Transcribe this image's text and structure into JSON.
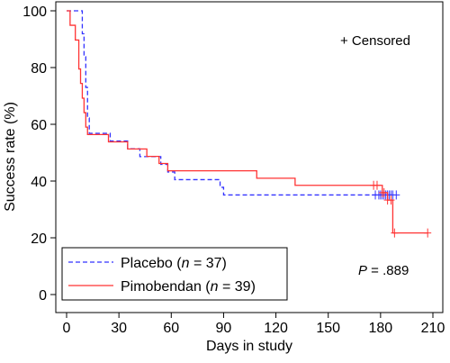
{
  "chart_data": {
    "type": "line",
    "step": true,
    "xlabel": "Days in study",
    "ylabel": "Success rate (%)",
    "xlim": [
      0,
      210
    ],
    "ylim": [
      0,
      100
    ],
    "x_ticks": [
      0,
      30,
      60,
      90,
      120,
      150,
      180,
      210
    ],
    "y_ticks": [
      0,
      20,
      40,
      60,
      80,
      100
    ],
    "grid": false,
    "legend_position": "bottom-left",
    "censor_label": "+ Censored",
    "p_value_label": "P",
    "p_value_text": " = .889",
    "series": [
      {
        "name": "Placebo",
        "n_label": "n",
        "n_text": " = 37)",
        "color": "#3333ff",
        "dash": "dashed",
        "points": [
          [
            0,
            100
          ],
          [
            8,
            100
          ],
          [
            9,
            91.9
          ],
          [
            10,
            83.8
          ],
          [
            11,
            73
          ],
          [
            12,
            62.2
          ],
          [
            13,
            56.8
          ],
          [
            25,
            54.1
          ],
          [
            35,
            51.4
          ],
          [
            42,
            48.6
          ],
          [
            54,
            45.9
          ],
          [
            58,
            43.2
          ],
          [
            62,
            40.5
          ],
          [
            88,
            37.8
          ],
          [
            90,
            35.1
          ],
          [
            183,
            35.1
          ]
        ],
        "censored": [
          177,
          179,
          180,
          181,
          182,
          183,
          184,
          185,
          186,
          187,
          189
        ]
      },
      {
        "name": "Pimobendan",
        "n_label": "n",
        "n_text": " = 39)",
        "color": "#ff3333",
        "dash": "solid",
        "points": [
          [
            0,
            100
          ],
          [
            2,
            94.9
          ],
          [
            5,
            89.7
          ],
          [
            7,
            79.5
          ],
          [
            8,
            74.4
          ],
          [
            9,
            69.2
          ],
          [
            10,
            64.1
          ],
          [
            11,
            59
          ],
          [
            12,
            56.4
          ],
          [
            24,
            53.8
          ],
          [
            35,
            51.3
          ],
          [
            46,
            48.7
          ],
          [
            53,
            46.2
          ],
          [
            58,
            43.6
          ],
          [
            109,
            41
          ],
          [
            131,
            38.5
          ],
          [
            181,
            35.9
          ],
          [
            184,
            33.3
          ],
          [
            187,
            21.7
          ],
          [
            207,
            21.7
          ]
        ],
        "censored": [
          176,
          178,
          181,
          182,
          184,
          186,
          188,
          207
        ]
      }
    ]
  }
}
